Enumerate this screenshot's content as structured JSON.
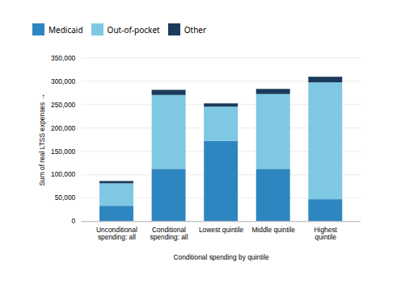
{
  "chart_data": {
    "type": "bar",
    "stacked": true,
    "categories": [
      "Unconditional\nspending: all",
      "Conditional\nspending: all",
      "Lowest quintile",
      "Middle quintile",
      "Highest\nquintile"
    ],
    "series": [
      {
        "name": "Medicaid",
        "color": "#2E86C1",
        "values": [
          33000,
          112000,
          172000,
          112000,
          47000
        ]
      },
      {
        "name": "Out-of-pocket",
        "color": "#7EC8E3",
        "values": [
          48000,
          158000,
          73000,
          160000,
          250000
        ]
      },
      {
        "name": "Other",
        "color": "#1B3A5C",
        "values": [
          5000,
          11000,
          7000,
          11000,
          12000
        ]
      }
    ],
    "xlabel": "Conditional spending by quintile",
    "ylabel": "Sum of real LTSS expenses",
    "ylim": [
      0,
      350000
    ],
    "yticks": [
      0,
      {
        "value": 50000,
        "label": "50,000"
      },
      {
        "value": 100000,
        "label": "100,000"
      },
      {
        "value": 150000,
        "label": "150,000"
      },
      {
        "value": 200000,
        "label": "200,000"
      },
      {
        "value": 250000,
        "label": "250,000"
      },
      {
        "value": 300000,
        "label": "300,000"
      },
      {
        "value": 350000,
        "label": "350,000"
      }
    ],
    "grid": true,
    "legend": "top"
  }
}
